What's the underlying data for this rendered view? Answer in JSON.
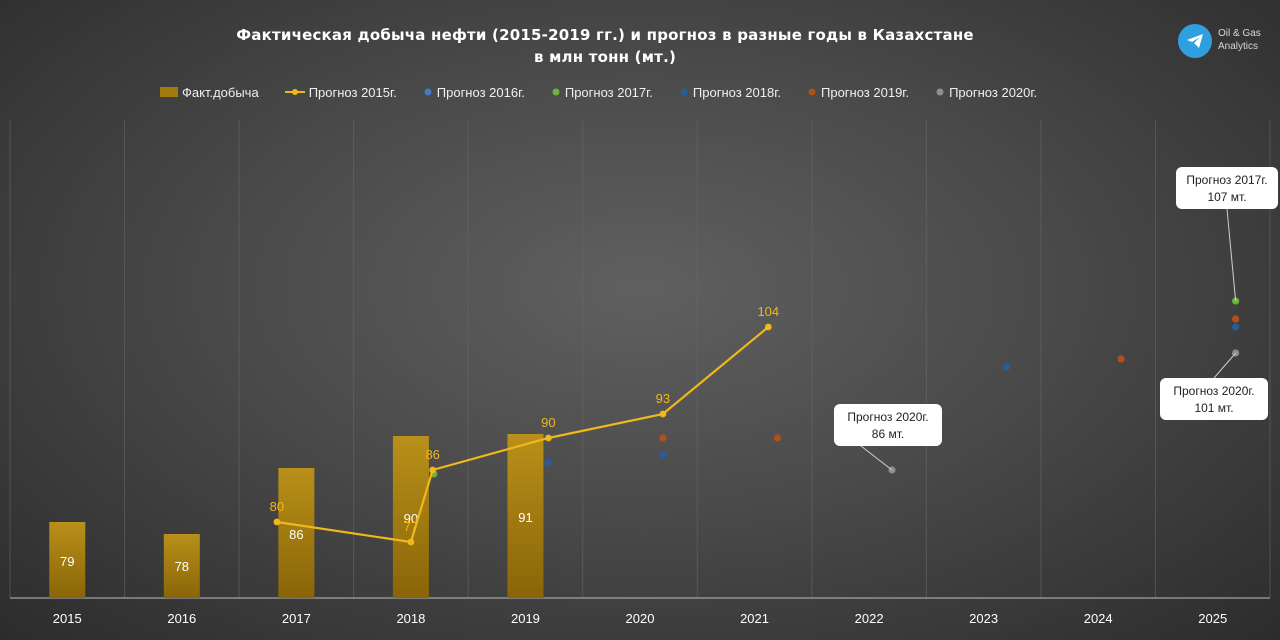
{
  "header": {
    "title_line1": "Фактическая добыча нефти (2015-2019 гг.) и прогноз в разные годы в Казахстане",
    "title_line2": "в млн тонн (мт.)"
  },
  "brand": {
    "line1": "Oil & Gas",
    "line2": "Analytics",
    "icon": "telegram-icon",
    "color": "#2f9fe0"
  },
  "legend": [
    {
      "label": "Факт.добыча",
      "type": "bar",
      "color": "#a07c10"
    },
    {
      "label": "Прогноз 2015г.",
      "type": "line",
      "color": "#f0b818"
    },
    {
      "label": "Прогноз 2016г.",
      "type": "dot",
      "color": "#4878c8"
    },
    {
      "label": "Прогноз 2017г.",
      "type": "dot",
      "color": "#70b040"
    },
    {
      "label": "Прогноз 2018г.",
      "type": "dot",
      "color": "#245e9c"
    },
    {
      "label": "Прогноз 2019г.",
      "type": "dot",
      "color": "#b2501c"
    },
    {
      "label": "Прогноз 2020г.",
      "type": "dot",
      "color": "#8e8e8e"
    }
  ],
  "chart_data": {
    "type": "bar",
    "categories": [
      "2015",
      "2016",
      "2017",
      "2018",
      "2019",
      "2020",
      "2021",
      "2022",
      "2023",
      "2024",
      "2025"
    ],
    "ylim": [
      0,
      120
    ],
    "grid": "vertical",
    "legend_position": "top",
    "bars": {
      "name": "Факт.добыча",
      "values": [
        79,
        78,
        86,
        90,
        91,
        null,
        null,
        null,
        null,
        null,
        null
      ]
    },
    "line": {
      "name": "Прогноз 2015г.",
      "x": [
        "2017",
        "2018",
        "2018",
        "2019",
        "2020",
        "2021"
      ],
      "values": [
        80,
        77,
        86,
        90,
        93,
        104
      ],
      "labels": [
        "80",
        "77",
        "86",
        "90",
        "93",
        "104"
      ]
    },
    "scatter": [
      {
        "name": "Прогноз 2016г.",
        "points": []
      },
      {
        "name": "Прогноз 2017г.",
        "points": [
          {
            "x": "2018",
            "y": 85
          },
          {
            "x": "2025",
            "y": 107
          }
        ]
      },
      {
        "name": "Прогноз 2018г.",
        "points": [
          {
            "x": "2019",
            "y": 87
          },
          {
            "x": "2020",
            "y": 88
          },
          {
            "x": "2023",
            "y": 96
          },
          {
            "x": "2025",
            "y": 104
          }
        ]
      },
      {
        "name": "Прогноз 2019г.",
        "points": [
          {
            "x": "2020",
            "y": 90
          },
          {
            "x": "2021",
            "y": 90
          },
          {
            "x": "2024",
            "y": 97
          },
          {
            "x": "2025",
            "y": 105
          }
        ]
      },
      {
        "name": "Прогноз 2020г.",
        "points": [
          {
            "x": "2022",
            "y": 86
          },
          {
            "x": "2025",
            "y": 101
          }
        ]
      }
    ],
    "callouts": [
      {
        "line1": "Прогноз 2017г.",
        "line2": "107 мт.",
        "x": "2025",
        "y": 107
      },
      {
        "line1": "Прогноз 2020г.",
        "line2": "86 мт.",
        "x": "2022",
        "y": 86
      },
      {
        "line1": "Прогноз 2020г.",
        "line2": "101 мт.",
        "x": "2025",
        "y": 101
      }
    ]
  }
}
